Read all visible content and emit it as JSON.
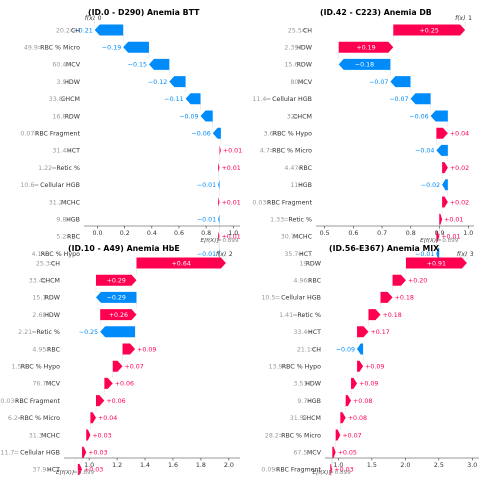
{
  "chart_data": [
    {
      "type": "waterfall",
      "title": "(ID.0 - D290) Anemia BTT",
      "fx_label": "f(x)",
      "fx_value": "0",
      "efx_label": "E[f(X)]",
      "efx_value": "0.899",
      "xlim": [
        -0.1,
        1.05
      ],
      "ticks": [
        "0.0",
        "0.2",
        "0.4",
        "0.6",
        "0.8",
        "1.0"
      ],
      "start": 0.899,
      "features": [
        {
          "value": "20.2",
          "name": "CH",
          "contribution": -0.21,
          "label": "−0.21"
        },
        {
          "value": "49.9",
          "name": "RBC % Micro",
          "contribution": -0.19,
          "label": "−0.19"
        },
        {
          "value": "60.4",
          "name": "MCV",
          "contribution": -0.15,
          "label": "−0.15"
        },
        {
          "value": "3.9",
          "name": "HDW",
          "contribution": -0.12,
          "label": "−0.12"
        },
        {
          "value": "33.8",
          "name": "CHCM",
          "contribution": -0.11,
          "label": "−0.11"
        },
        {
          "value": "16.8",
          "name": "RDW",
          "contribution": -0.09,
          "label": "−0.09"
        },
        {
          "value": "0.07",
          "name": "RBC Fragment",
          "contribution": -0.06,
          "label": "−0.06"
        },
        {
          "value": "31.4",
          "name": "HCT",
          "contribution": 0.01,
          "label": "+0.01"
        },
        {
          "value": "1.22",
          "name": "Retic %",
          "contribution": 0.01,
          "label": "+0.01"
        },
        {
          "value": "10.6",
          "name": "Cellular HGB",
          "contribution": -0.01,
          "label": "−0.01"
        },
        {
          "value": "31.2",
          "name": "MCHC",
          "contribution": 0.01,
          "label": "+0.01"
        },
        {
          "value": "9.8",
          "name": "HGB",
          "contribution": -0.01,
          "label": "−0.01"
        },
        {
          "value": "5.2",
          "name": "RBC",
          "contribution": 0.01,
          "label": "+0.01"
        },
        {
          "value": "4.1",
          "name": "RBC % Hypo",
          "contribution": -0.01,
          "label": "−0.01"
        }
      ]
    },
    {
      "type": "waterfall",
      "title": "(ID.42 - C223) Anemia DB",
      "fx_label": "f(x)",
      "fx_value": "1",
      "efx_label": "E[f(X)]",
      "efx_value": "0.899",
      "xlim": [
        0.47,
        1.02
      ],
      "ticks": [
        "0.5",
        "0.6",
        "0.7",
        "0.8",
        "0.9",
        "1.0"
      ],
      "start": 0.899,
      "features": [
        {
          "value": "25.5",
          "name": "CH",
          "contribution": 0.25,
          "label": "+0.25"
        },
        {
          "value": "2.39",
          "name": "HDW",
          "contribution": 0.19,
          "label": "+0.19"
        },
        {
          "value": "15.6",
          "name": "RDW",
          "contribution": -0.18,
          "label": "−0.18"
        },
        {
          "value": "80",
          "name": "MCV",
          "contribution": -0.07,
          "label": "−0.07"
        },
        {
          "value": "11.4",
          "name": "Cellular HGB",
          "contribution": -0.07,
          "label": "−0.07"
        },
        {
          "value": "32",
          "name": "CHCM",
          "contribution": -0.06,
          "label": "−0.06"
        },
        {
          "value": "3.6",
          "name": "RBC % Hypo",
          "contribution": 0.04,
          "label": "+0.04"
        },
        {
          "value": "4.7",
          "name": "RBC % Micro",
          "contribution": -0.04,
          "label": "−0.04"
        },
        {
          "value": "4.47",
          "name": "RBC",
          "contribution": 0.02,
          "label": "+0.02"
        },
        {
          "value": "11",
          "name": "HGB",
          "contribution": -0.02,
          "label": "−0.02"
        },
        {
          "value": "0.03",
          "name": "RBC Fragment",
          "contribution": 0.02,
          "label": "+0.02"
        },
        {
          "value": "1.33",
          "name": "Retic %",
          "contribution": 0.01,
          "label": "+0.01"
        },
        {
          "value": "30.7",
          "name": "MCHC",
          "contribution": 0.01,
          "label": "+0.01"
        },
        {
          "value": "35.7",
          "name": "HCT",
          "contribution": -0.01,
          "label": "−0.01"
        }
      ]
    },
    {
      "type": "waterfall",
      "title": "(ID.10 - A49) Anemia HbE",
      "fx_label": "f(x)",
      "fx_value": "2",
      "efx_label": "E[f(X)]",
      "efx_value": "0.899",
      "xlim": [
        0.82,
        2.08
      ],
      "ticks": [
        "1.0",
        "1.2",
        "1.4",
        "1.6",
        "1.8",
        "2.0"
      ],
      "start": 0.899,
      "features": [
        {
          "value": "25.3",
          "name": "CH",
          "contribution": 0.64,
          "label": "+0.64"
        },
        {
          "value": "33.4",
          "name": "CHCM",
          "contribution": 0.29,
          "label": "+0.29"
        },
        {
          "value": "15.1",
          "name": "RDW",
          "contribution": -0.29,
          "label": "−0.29"
        },
        {
          "value": "2.68",
          "name": "HDW",
          "contribution": 0.26,
          "label": "+0.26"
        },
        {
          "value": "2.21",
          "name": "Retic %",
          "contribution": -0.25,
          "label": "−0.25"
        },
        {
          "value": "4.95",
          "name": "RBC",
          "contribution": 0.09,
          "label": "+0.09"
        },
        {
          "value": "1.5",
          "name": "RBC % Hypo",
          "contribution": 0.07,
          "label": "+0.07"
        },
        {
          "value": "76.7",
          "name": "MCV",
          "contribution": 0.06,
          "label": "+0.06"
        },
        {
          "value": "0.03",
          "name": "RBC Fragment",
          "contribution": 0.06,
          "label": "+0.06"
        },
        {
          "value": "6.2",
          "name": "RBC % Micro",
          "contribution": 0.04,
          "label": "+0.04"
        },
        {
          "value": "31.3",
          "name": "MCHC",
          "contribution": 0.03,
          "label": "+0.03"
        },
        {
          "value": "11.7",
          "name": "Cellular HGB",
          "contribution": 0.03,
          "label": "+0.03"
        },
        {
          "value": "37.9",
          "name": "HCT",
          "contribution": 0.03,
          "label": "+0.03"
        },
        {
          "value": "11.9",
          "name": "HGB",
          "contribution": 0.02,
          "label": "+0.02"
        }
      ]
    },
    {
      "type": "waterfall",
      "title": "(ID.56-E367) Anemia MIX",
      "fx_label": "f(x)",
      "fx_value": "3",
      "efx_label": "E[f(X)]",
      "efx_value": "0.899",
      "xlim": [
        0.8,
        3.1
      ],
      "ticks": [
        "1.0",
        "1.5",
        "2.0",
        "2.5",
        "3.0"
      ],
      "start": 0.899,
      "features": [
        {
          "value": "19",
          "name": "RDW",
          "contribution": 0.91,
          "label": "+0.91"
        },
        {
          "value": "4.96",
          "name": "RBC",
          "contribution": 0.2,
          "label": "+0.20"
        },
        {
          "value": "10.5",
          "name": "Cellular HGB",
          "contribution": 0.18,
          "label": "+0.18"
        },
        {
          "value": "1.41",
          "name": "Retic %",
          "contribution": 0.18,
          "label": "+0.18"
        },
        {
          "value": "33.4",
          "name": "HCT",
          "contribution": 0.17,
          "label": "+0.17"
        },
        {
          "value": "21.1",
          "name": "CH",
          "contribution": -0.09,
          "label": "−0.09"
        },
        {
          "value": "13.9",
          "name": "RBC % Hypo",
          "contribution": 0.09,
          "label": "+0.09"
        },
        {
          "value": "3.51",
          "name": "HDW",
          "contribution": 0.09,
          "label": "+0.09"
        },
        {
          "value": "9.7",
          "name": "HGB",
          "contribution": 0.08,
          "label": "+0.08"
        },
        {
          "value": "31.5",
          "name": "CHCM",
          "contribution": 0.08,
          "label": "+0.08"
        },
        {
          "value": "28.2",
          "name": "RBC % Micro",
          "contribution": 0.07,
          "label": "+0.07"
        },
        {
          "value": "67.5",
          "name": "MCV",
          "contribution": 0.05,
          "label": "+0.05"
        },
        {
          "value": "0.09",
          "name": "RBC Fragment",
          "contribution": 0.03,
          "label": "+0.03"
        },
        {
          "value": "29.1",
          "name": "MCHC",
          "contribution": -0.02,
          "label": "−0.02"
        }
      ]
    }
  ],
  "colors": {
    "positive": "#ff0051",
    "negative": "#008bfb",
    "axis": "#333333",
    "feature_value": "#999999",
    "feature_name": "#333333",
    "grid": "#cccccc"
  }
}
